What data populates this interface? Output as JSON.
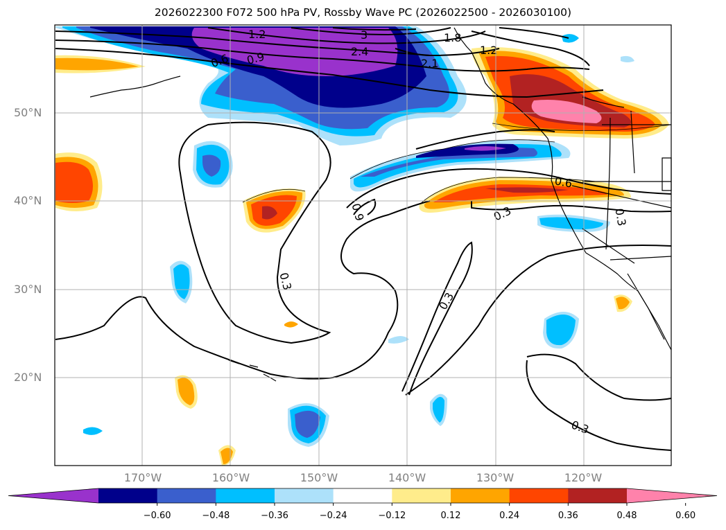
{
  "title": "2026022300 F072 500 hPa PV, Rossby Wave PC (2026022500 - 2026030100)",
  "lat_labels": [
    {
      "text": "50°N",
      "lat": 50
    },
    {
      "text": "40°N",
      "lat": 40
    },
    {
      "text": "30°N",
      "lat": 30
    },
    {
      "text": "20°N",
      "lat": 20
    }
  ],
  "lon_labels": [
    {
      "text": "170°W",
      "lon": -170
    },
    {
      "text": "160°W",
      "lon": -160
    },
    {
      "text": "150°W",
      "lon": -150
    },
    {
      "text": "140°W",
      "lon": -140
    },
    {
      "text": "130°W",
      "lon": -130
    },
    {
      "text": "120°W",
      "lon": -120
    }
  ],
  "colorbar": {
    "colors": [
      "#9932CC",
      "#00008B",
      "#3A5FCD",
      "#00BFFF",
      "#ADE1FA",
      "#FFFFFF",
      "#FFEC8B",
      "#FFA500",
      "#FF4500",
      "#B22222",
      "#FF82AB"
    ],
    "ticks": [
      "−0.60",
      "−0.48",
      "−0.36",
      "−0.24",
      "−0.12",
      "0.12",
      "0.24",
      "0.36",
      "0.48",
      "0.60"
    ]
  },
  "contour_labels": [
    {
      "text": "0.3",
      "rotate": 75
    },
    {
      "text": "0.9",
      "rotate": 75
    },
    {
      "text": "0.3",
      "rotate": -60
    },
    {
      "text": "0.3",
      "rotate": -25
    },
    {
      "text": "0.6",
      "rotate": 10
    },
    {
      "text": "0.3",
      "rotate": 80
    },
    {
      "text": "0.3",
      "rotate": 20
    },
    {
      "text": "0.6",
      "rotate": -20
    },
    {
      "text": "0.9",
      "rotate": -15
    },
    {
      "text": "1.2",
      "rotate": 0
    },
    {
      "text": "2.1",
      "rotate": 0
    },
    {
      "text": "2.4",
      "rotate": 0
    },
    {
      "text": "3",
      "rotate": 0
    },
    {
      "text": "1.8",
      "rotate": 0
    },
    {
      "text": "1.2",
      "rotate": 0
    }
  ]
}
